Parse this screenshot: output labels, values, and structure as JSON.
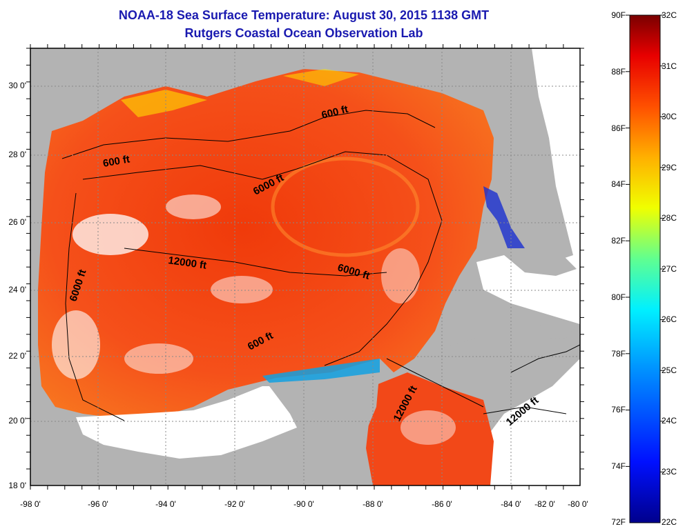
{
  "title": {
    "line1": "NOAA-18 Sea Surface Temperature:  August 30, 2015 1138 GMT",
    "line2": "Rutgers Coastal Ocean Observation Lab"
  },
  "map": {
    "lat_labels": [
      "30 0'",
      "28 0'",
      "26 0'",
      "24 0'",
      "22 0'",
      "20 0'",
      "18 0'"
    ],
    "lon_labels": [
      "-98 0'",
      "-96 0'",
      "-94 0'",
      "-92 0'",
      "-90 0'",
      "-88 0'",
      "-86 0'",
      "-84 0'",
      "-82 0'",
      "-80 0'"
    ],
    "contour_labels": [
      "600 ft",
      "600 ft",
      "6000 ft",
      "12000 ft",
      "6000 ft",
      "6000 ft",
      "600 ft",
      "12000 ft",
      "12000 ft"
    ],
    "colors": {
      "land": "#b3b3b3",
      "no_data": "#ffffff",
      "warm": "#f04a10"
    }
  },
  "colorbar": {
    "fahrenheit": [
      "90F",
      "88F",
      "86F",
      "84F",
      "82F",
      "80F",
      "78F",
      "76F",
      "74F",
      "72F"
    ],
    "celsius": [
      "32C",
      "31C",
      "30C",
      "29C",
      "28C",
      "27C",
      "26C",
      "25C",
      "24C",
      "23C",
      "22C"
    ],
    "range_c": [
      22,
      32
    ]
  }
}
